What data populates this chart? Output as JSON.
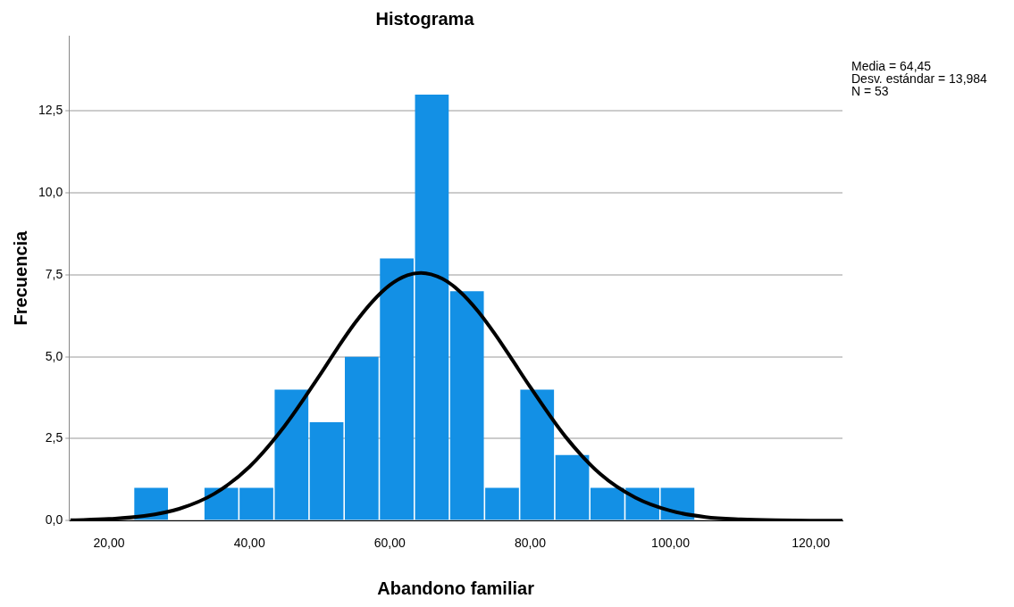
{
  "chart_data": {
    "type": "histogram",
    "title": "Histograma",
    "xlabel": "Abandono familiar",
    "ylabel": "Frecuencia",
    "bins": [
      23.5,
      28.5,
      33.5,
      38.5,
      43.5,
      48.5,
      53.5,
      58.5,
      63.5,
      68.5,
      73.5,
      78.5,
      83.5,
      88.5,
      93.5,
      98.5,
      103.5
    ],
    "values": [
      1,
      0,
      1,
      1,
      4,
      3,
      5,
      8,
      13,
      7,
      1,
      4,
      2,
      1,
      1,
      1
    ],
    "color": "#1390e5",
    "series": [
      {
        "type": "line",
        "color": "#000000",
        "x": [
          14.5,
          20,
          25,
          30,
          35,
          40,
          45,
          50,
          52.5,
          55,
          57.5,
          60,
          62.5,
          64.45,
          67.5,
          70,
          72.5,
          75,
          77.5,
          80,
          85,
          90,
          95,
          100,
          105,
          110,
          115,
          120,
          124.5
        ],
        "values": [
          0.01,
          0.05,
          0.14,
          0.36,
          0.82,
          1.64,
          2.88,
          4.43,
          5.25,
          6.02,
          6.68,
          7.19,
          7.49,
          7.56,
          7.38,
          6.99,
          6.41,
          5.69,
          4.89,
          4.08,
          2.57,
          1.42,
          0.7,
          0.3,
          0.11,
          0.04,
          0.01,
          0.0,
          0.0
        ]
      }
    ],
    "xlim": [
      14.3,
      124.5
    ],
    "ylim": [
      0,
      14.8
    ],
    "xticks": [
      {
        "value": 20,
        "label": "20,00"
      },
      {
        "value": 40,
        "label": "40,00"
      },
      {
        "value": 60,
        "label": "60,00"
      },
      {
        "value": 80,
        "label": "80,00"
      },
      {
        "value": 100,
        "label": "100,00"
      },
      {
        "value": 120,
        "label": "120,00"
      }
    ],
    "yticks": [
      {
        "value": 0,
        "label": "0,0"
      },
      {
        "value": 2.5,
        "label": "2,5"
      },
      {
        "value": 5,
        "label": "5,0"
      },
      {
        "value": 7.5,
        "label": "7,5"
      },
      {
        "value": 10,
        "label": "10,0"
      },
      {
        "value": 12.5,
        "label": "12,5"
      }
    ],
    "grid": "y",
    "legend": false,
    "marker": "none",
    "line_style": "solid",
    "annotations": [
      "Media = 64,45",
      "Desv. estándar = 13,984",
      "N = 53"
    ]
  }
}
